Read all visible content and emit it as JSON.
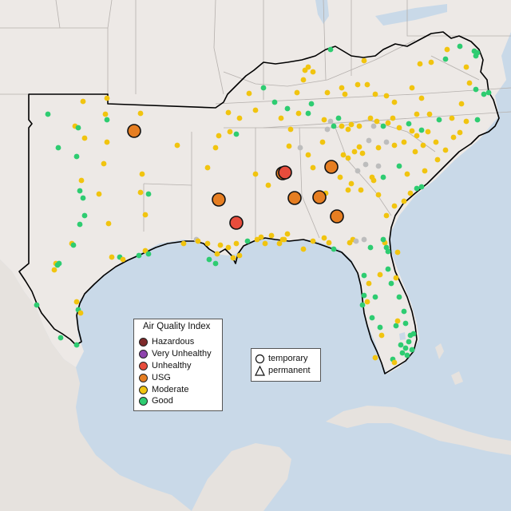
{
  "legend": {
    "title": "Air Quality Index",
    "categories": [
      {
        "label": "Hazardous",
        "color": "#7e2a2a"
      },
      {
        "label": "Very Unhealthy",
        "color": "#8e44ad"
      },
      {
        "label": "Unhealthy",
        "color": "#e74c3c"
      },
      {
        "label": "USG",
        "color": "#e67e22"
      },
      {
        "label": "Moderate",
        "color": "#f1c40f"
      },
      {
        "label": "Good",
        "color": "#2ecc71"
      }
    ]
  },
  "monitor_types": [
    {
      "label": "temporary",
      "shape": "circle"
    },
    {
      "label": "permanent",
      "shape": "triangle"
    }
  ],
  "colors": {
    "water": "#c9d9e8",
    "land": "#ede9e6",
    "no_data": "#bdbdbd",
    "region_outline": "#000000",
    "state_borders": "#b5b0ad"
  }
}
